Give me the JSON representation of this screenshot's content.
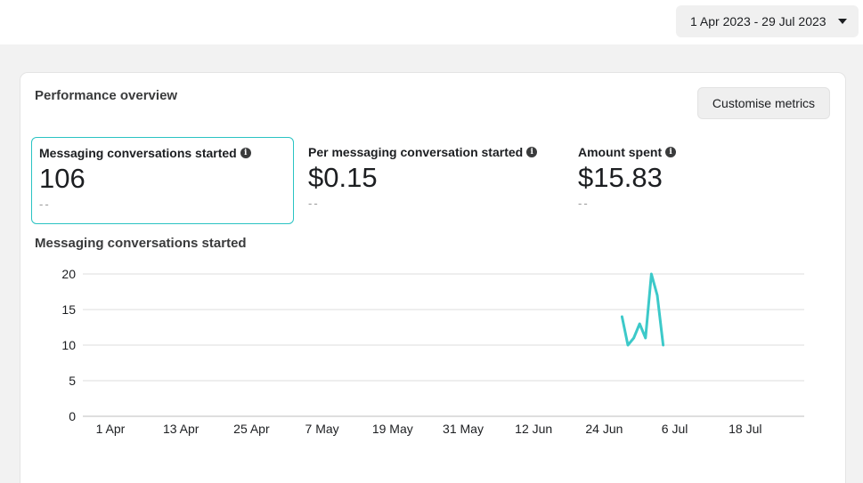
{
  "date_range": {
    "label": "1 Apr 2023 - 29 Jul 2023"
  },
  "card": {
    "title": "Performance overview",
    "customise_label": "Customise metrics"
  },
  "metrics": [
    {
      "label": "Messaging conversations started",
      "value": "106",
      "compare": "--"
    },
    {
      "label": "Per messaging conversation started",
      "value": "$0.15",
      "compare": "--"
    },
    {
      "label": "Amount spent",
      "value": "$15.83",
      "compare": "--"
    }
  ],
  "info_icon_glyph": "i",
  "colors": {
    "accent": "#2ac3c3",
    "series": "#3cc9c9"
  },
  "chart_title": "Messaging conversations started",
  "chart_data": {
    "type": "line",
    "title": "Messaging conversations started",
    "xlabel": "",
    "ylabel": "",
    "ylim": [
      0,
      20
    ],
    "yticks": [
      0,
      5,
      10,
      15,
      20
    ],
    "x_ticks": [
      "1 Apr",
      "13 Apr",
      "25 Apr",
      "7 May",
      "19 May",
      "31 May",
      "12 Jun",
      "24 Jun",
      "6 Jul",
      "18 Jul"
    ],
    "x_range": [
      "2023-04-01",
      "2023-07-29"
    ],
    "grid": true,
    "series": [
      {
        "x": [
          "2023-06-29",
          "2023-06-30",
          "2023-07-01",
          "2023-07-02",
          "2023-07-03",
          "2023-07-04",
          "2023-07-05",
          "2023-07-06"
        ],
        "values": [
          14,
          10,
          11,
          13,
          11,
          20,
          17,
          10
        ]
      }
    ]
  }
}
